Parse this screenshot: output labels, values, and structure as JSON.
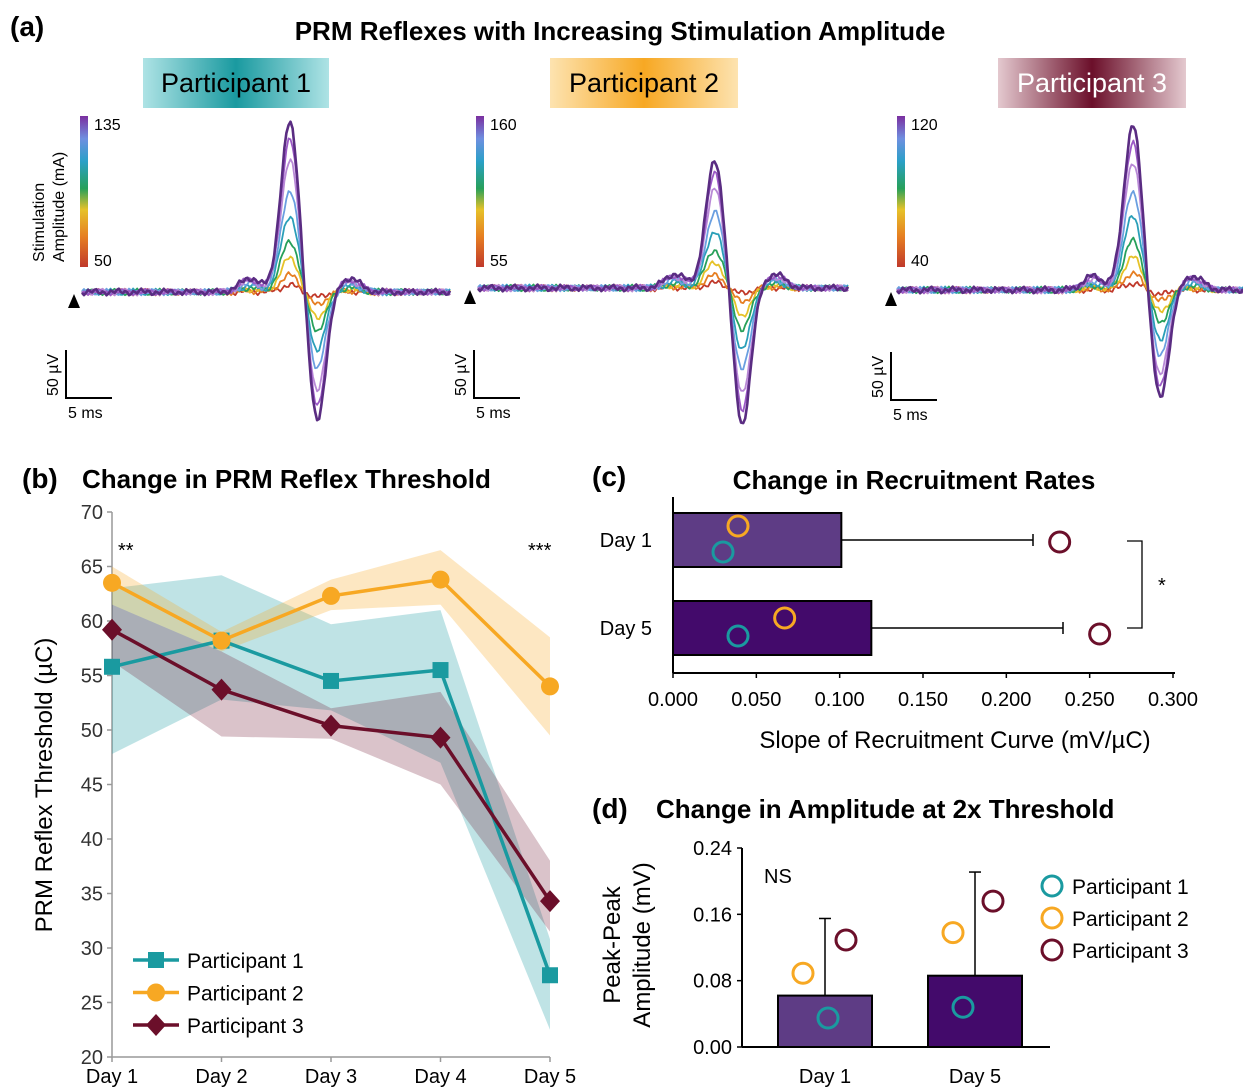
{
  "figure_title": "PRM Reflexes with Increasing Stimulation Amplitude",
  "colors": {
    "p1": "#1a9aa0",
    "p2": "#f7a823",
    "p3": "#6b0f2a",
    "bar_day1": "#5e3c85",
    "bar_day5": "#430a6b"
  },
  "chart_data": [
    {
      "panel": "(a)",
      "type": "line",
      "title": "PRM Reflexes with Increasing Stimulation Amplitude",
      "colorbar_label": "Stimulation Amplitude (mA)",
      "scale_bar": {
        "voltage": "50 µV",
        "time": "5 ms"
      },
      "participants": [
        {
          "label": "Participant 1",
          "amp_min": "50",
          "amp_max": "135"
        },
        {
          "label": "Participant 2",
          "amp_min": "55",
          "amp_max": "160"
        },
        {
          "label": "Participant 3",
          "amp_min": "40",
          "amp_max": "120"
        }
      ]
    },
    {
      "panel": "(b)",
      "type": "line",
      "title": "Change in PRM Reflex Threshold",
      "xlabel": "",
      "ylabel": "PRM Reflex Threshold (µC)",
      "categories": [
        "Day 1",
        "Day 2",
        "Day 3",
        "Day 4",
        "Day 5"
      ],
      "ylim": [
        20,
        70
      ],
      "yticks": [
        "20",
        "25",
        "30",
        "35",
        "40",
        "45",
        "50",
        "55",
        "60",
        "65",
        "70"
      ],
      "significance": [
        {
          "day": "Day 1",
          "label": "**"
        },
        {
          "day": "Day 5",
          "label": "***"
        }
      ],
      "series": [
        {
          "name": "Participant 1",
          "values": [
            55.8,
            58.2,
            54.5,
            55.5,
            27.5
          ],
          "upper": [
            63.0,
            64.2,
            59.7,
            61.0,
            30.8
          ],
          "lower": [
            47.8,
            52.8,
            51.8,
            47.0,
            22.5
          ]
        },
        {
          "name": "Participant 2",
          "values": [
            63.5,
            58.2,
            62.3,
            63.8,
            54.0
          ],
          "upper": [
            65.0,
            59.0,
            63.8,
            66.5,
            58.5
          ],
          "lower": [
            61.5,
            57.2,
            61.0,
            61.5,
            49.5
          ]
        },
        {
          "name": "Participant 3",
          "values": [
            59.2,
            53.7,
            50.4,
            49.3,
            34.3
          ],
          "upper": [
            61.5,
            57.2,
            52.0,
            53.5,
            38.0
          ],
          "lower": [
            56.3,
            49.4,
            49.2,
            45.0,
            31.5
          ]
        }
      ]
    },
    {
      "panel": "(c)",
      "type": "bar",
      "title": "Change in Recruitment Rates",
      "xlabel": "Slope of Recruitment Curve (mV/µC)",
      "ylabel": "",
      "categories": [
        "Day 1",
        "Day 5"
      ],
      "values": [
        0.101,
        0.119
      ],
      "error_plus": [
        0.115,
        0.115
      ],
      "xlim": [
        0,
        0.3
      ],
      "xticks": [
        "0.000",
        "0.050",
        "0.100",
        "0.150",
        "0.200",
        "0.250",
        "0.300"
      ],
      "points": {
        "Participant 1": [
          0.03,
          0.039
        ],
        "Participant 2": [
          0.039,
          0.067
        ],
        "Participant 3": [
          0.232,
          0.256
        ]
      },
      "significance": "*"
    },
    {
      "panel": "(d)",
      "type": "bar",
      "title": "Change in Amplitude at 2x Threshold",
      "xlabel": "",
      "ylabel": "Peak-Peak Amplitude (mV)",
      "categories": [
        "Day 1",
        "Day 5"
      ],
      "values": [
        0.062,
        0.086
      ],
      "error_plus": [
        0.093,
        0.125
      ],
      "ylim": [
        0,
        0.24
      ],
      "yticks": [
        "0.00",
        "0.08",
        "0.16",
        "0.24"
      ],
      "points": {
        "Participant 1": [
          0.035,
          0.048
        ],
        "Participant 2": [
          0.089,
          0.138
        ],
        "Participant 3": [
          0.129,
          0.176
        ]
      },
      "annotation": "NS",
      "legend": [
        "Participant 1",
        "Participant 2",
        "Participant 3"
      ]
    }
  ]
}
